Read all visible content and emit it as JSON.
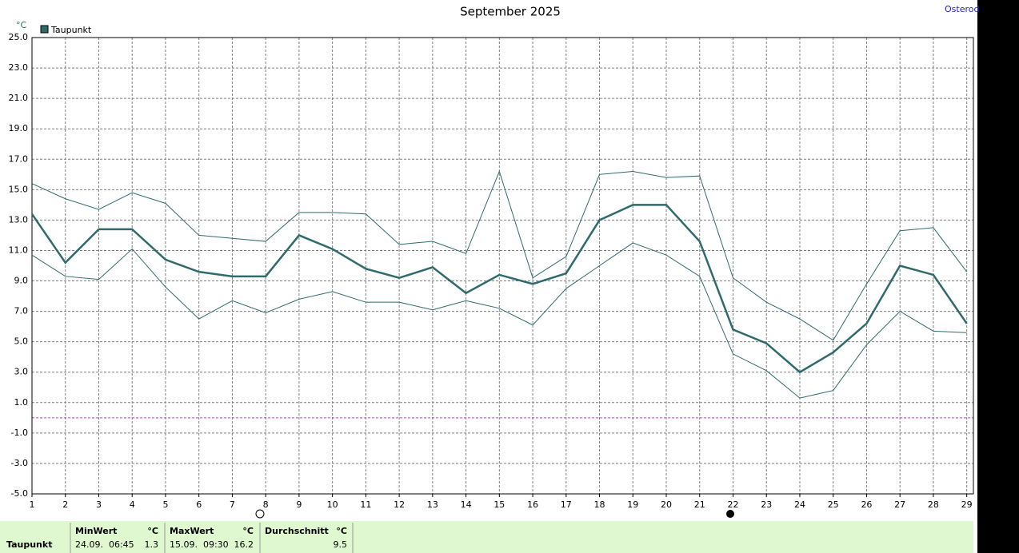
{
  "chart_data": {
    "type": "line",
    "title": "September 2025",
    "y_unit": "°C",
    "station": "Osterod",
    "x": [
      1,
      2,
      3,
      4,
      5,
      6,
      7,
      8,
      9,
      10,
      11,
      12,
      13,
      14,
      15,
      16,
      17,
      18,
      19,
      20,
      21,
      22,
      23,
      24,
      25,
      26,
      27,
      28,
      29
    ],
    "xlim": [
      1,
      29.2
    ],
    "xticks": [
      1,
      2,
      3,
      4,
      5,
      6,
      7,
      8,
      9,
      10,
      11,
      12,
      13,
      14,
      15,
      16,
      17,
      18,
      19,
      20,
      21,
      22,
      23,
      24,
      25,
      26,
      27,
      28,
      29
    ],
    "ylim": [
      -5,
      25
    ],
    "yticks": [
      {
        "value": -5,
        "label": "-5.0"
      },
      {
        "value": -3,
        "label": "-3.0"
      },
      {
        "value": -1,
        "label": "-1.0"
      },
      {
        "value": 1,
        "label": "1.0"
      },
      {
        "value": 3,
        "label": "3.0"
      },
      {
        "value": 5,
        "label": "5.0"
      },
      {
        "value": 7,
        "label": "7.0"
      },
      {
        "value": 9,
        "label": "9.0"
      },
      {
        "value": 11,
        "label": "11.0"
      },
      {
        "value": 13,
        "label": "13.0"
      },
      {
        "value": 15,
        "label": "15.0"
      },
      {
        "value": 17,
        "label": "17.0"
      },
      {
        "value": 19,
        "label": "19.0"
      },
      {
        "value": 21,
        "label": "21.0"
      },
      {
        "value": 23,
        "label": "23.0"
      },
      {
        "value": 25,
        "label": "25.0"
      }
    ],
    "grid": true,
    "hlines": [
      0
    ],
    "hline_color": "#c040c0",
    "series": [
      {
        "name": "Taupunkt",
        "color": "#2f6b6c",
        "values": [
          13.4,
          10.2,
          12.4,
          12.4,
          10.4,
          9.6,
          9.3,
          9.3,
          12.0,
          11.1,
          9.8,
          9.2,
          9.9,
          8.2,
          9.4,
          8.8,
          9.5,
          13.0,
          14.0,
          14.0,
          11.6,
          5.8,
          4.9,
          3.0,
          4.3,
          6.2,
          10.0,
          9.4,
          6.2
        ]
      },
      {
        "color": "#2f6b6c",
        "values": [
          15.4,
          14.4,
          13.7,
          14.8,
          14.1,
          12.0,
          11.8,
          11.6,
          13.5,
          13.5,
          13.4,
          11.4,
          11.6,
          10.8,
          16.2,
          9.2,
          10.6,
          16.0,
          16.2,
          15.8,
          15.9,
          9.2,
          7.6,
          6.5,
          5.1,
          8.8,
          12.3,
          12.5,
          9.6
        ]
      },
      {
        "color": "#2f6b6c",
        "values": [
          10.7,
          9.3,
          9.1,
          11.1,
          8.6,
          6.5,
          7.7,
          6.9,
          7.8,
          8.3,
          7.6,
          7.6,
          7.1,
          7.7,
          7.2,
          6.1,
          8.5,
          10.0,
          11.5,
          10.7,
          9.3,
          4.2,
          3.1,
          1.3,
          1.8,
          4.8,
          7.0,
          5.7,
          5.6
        ]
      }
    ]
  },
  "summary": {
    "row_label": "Taupunkt",
    "min": {
      "header": "MinWert",
      "unit": "°C",
      "time": "24.09.  06:45",
      "value": "1.3"
    },
    "max": {
      "header": "MaxWert",
      "unit": "°C",
      "time": "15.09.  09:30",
      "value": "16.2"
    },
    "avg": {
      "header": "Durchschnitt",
      "unit": "°C",
      "value": "9.5"
    }
  }
}
